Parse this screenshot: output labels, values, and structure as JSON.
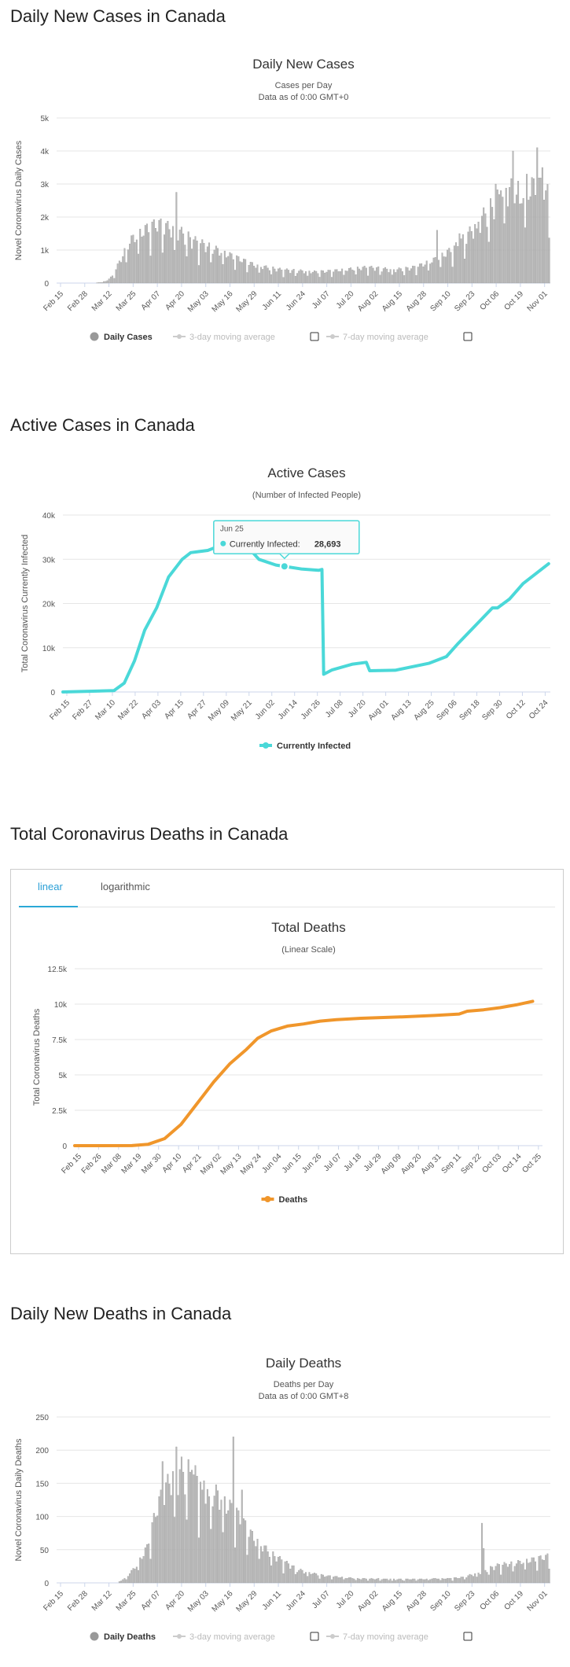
{
  "sections": {
    "daily_cases": "Daily New Cases in Canada",
    "active": "Active Cases in Canada",
    "total_deaths": "Total Coronavirus Deaths in Canada",
    "daily_deaths": "Daily New Deaths in Canada"
  },
  "tabs": {
    "linear": "linear",
    "log": "logarithmic"
  },
  "tooltip": {
    "date": "Jun 25",
    "label": "Currently Infected:",
    "value": "28,693"
  },
  "colors": {
    "bars": "#b8b8b8",
    "active": "#4ad8d8",
    "deaths": "#f0962b",
    "grid": "#e6e6e6",
    "tab": "#2aa8d6"
  },
  "chart_data": [
    {
      "id": "daily_cases",
      "type": "bar",
      "title": "Daily New Cases",
      "subtitle": "Cases per Day",
      "subtitle2": "Data as of 0:00 GMT+0",
      "xlabel": "",
      "ylabel": "Novel Coronavirus Daily Cases",
      "ylim": [
        0,
        5000
      ],
      "y_ticks": [
        0,
        1000,
        2000,
        3000,
        4000,
        5000
      ],
      "y_tick_labels": [
        "0",
        "1k",
        "2k",
        "3k",
        "4k",
        "5k"
      ],
      "x_tick_labels": [
        "Feb 15",
        "Feb 28",
        "Mar 12",
        "Mar 25",
        "Apr 07",
        "Apr 20",
        "May 03",
        "May 16",
        "May 29",
        "Jun 11",
        "Jun 24",
        "Jul 07",
        "Jul 20",
        "Aug 02",
        "Aug 15",
        "Aug 28",
        "Sep 10",
        "Sep 23",
        "Oct 06",
        "Oct 19",
        "Nov 01"
      ],
      "legend": [
        "Daily Cases",
        "3-day moving average",
        "7-day moving average"
      ],
      "keyframes": [
        [
          0,
          0
        ],
        [
          22,
          0
        ],
        [
          28,
          50
        ],
        [
          32,
          200
        ],
        [
          36,
          600
        ],
        [
          42,
          1200
        ],
        [
          50,
          1500
        ],
        [
          58,
          1700
        ],
        [
          70,
          1500
        ],
        [
          80,
          1200
        ],
        [
          90,
          1000
        ],
        [
          100,
          800
        ],
        [
          115,
          500
        ],
        [
          130,
          380
        ],
        [
          150,
          320
        ],
        [
          160,
          350
        ],
        [
          170,
          400
        ],
        [
          180,
          450
        ],
        [
          195,
          380
        ],
        [
          205,
          430
        ],
        [
          210,
          500
        ],
        [
          220,
          700
        ],
        [
          230,
          1000
        ],
        [
          240,
          1500
        ],
        [
          248,
          2000
        ],
        [
          255,
          2400
        ],
        [
          263,
          2700
        ],
        [
          270,
          2600
        ],
        [
          278,
          2800
        ],
        [
          282,
          2700
        ],
        [
          285,
          2500
        ]
      ],
      "spikes": [
        [
          69,
          2750
        ],
        [
          220,
          1600
        ],
        [
          233,
          1500
        ],
        [
          243,
          1650
        ],
        [
          248,
          2100
        ],
        [
          252,
          2300
        ],
        [
          254,
          3000
        ],
        [
          257,
          2800
        ],
        [
          259,
          1800
        ],
        [
          262,
          2900
        ],
        [
          264,
          4000
        ],
        [
          268,
          2400
        ],
        [
          272,
          3300
        ],
        [
          275,
          3200
        ],
        [
          278,
          4100
        ],
        [
          281,
          3500
        ],
        [
          283,
          2800
        ]
      ]
    },
    {
      "id": "active",
      "type": "line",
      "series_name": "Currently Infected",
      "title": "Active Cases",
      "subtitle": "(Number of Infected People)",
      "xlabel": "",
      "ylabel": "Total Coronavirus Currently Infected",
      "ylim": [
        0,
        40000
      ],
      "y_ticks": [
        0,
        10000,
        20000,
        30000,
        40000
      ],
      "y_tick_labels": [
        "0",
        "10k",
        "20k",
        "30k",
        "40k"
      ],
      "x_tick_labels": [
        "Feb 15",
        "Feb 27",
        "Mar 10",
        "Mar 22",
        "Apr 03",
        "Apr 15",
        "Apr 27",
        "May 09",
        "May 21",
        "Jun 02",
        "Jun 14",
        "Jun 26",
        "Jul 08",
        "Jul 20",
        "Aug 01",
        "Aug 13",
        "Aug 25",
        "Sep 06",
        "Sep 18",
        "Sep 30",
        "Oct 12",
        "Oct 24"
      ],
      "points": [
        [
          0,
          0
        ],
        [
          30,
          300
        ],
        [
          36,
          2000
        ],
        [
          42,
          7000
        ],
        [
          48,
          14000
        ],
        [
          55,
          19000
        ],
        [
          62,
          26000
        ],
        [
          70,
          30000
        ],
        [
          75,
          31500
        ],
        [
          85,
          32000
        ],
        [
          95,
          33500
        ],
        [
          108,
          33000
        ],
        [
          115,
          30000
        ],
        [
          125,
          28700
        ],
        [
          140,
          27800
        ],
        [
          150,
          27500
        ],
        [
          152,
          27700
        ],
        [
          153,
          4000
        ],
        [
          158,
          5000
        ],
        [
          170,
          6300
        ],
        [
          178,
          6700
        ],
        [
          180,
          4800
        ],
        [
          195,
          4900
        ],
        [
          215,
          6500
        ],
        [
          225,
          8000
        ],
        [
          232,
          11000
        ],
        [
          242,
          15000
        ],
        [
          252,
          19000
        ],
        [
          255,
          19000
        ],
        [
          262,
          21000
        ],
        [
          270,
          24500
        ],
        [
          285,
          29000
        ]
      ],
      "tooltip_x": 130
    },
    {
      "id": "total_deaths",
      "type": "line",
      "series_name": "Deaths",
      "title": "Total Deaths",
      "subtitle": "(Linear Scale)",
      "xlabel": "",
      "ylabel": "Total Coronavirus Deaths",
      "ylim": [
        0,
        12500
      ],
      "y_ticks": [
        0,
        2500,
        5000,
        7500,
        10000,
        12500
      ],
      "y_tick_labels": [
        "0",
        "2.5k",
        "5k",
        "7.5k",
        "10k",
        "12.5k"
      ],
      "x_tick_labels": [
        "Feb 15",
        "Feb 26",
        "Mar 08",
        "Mar 19",
        "Mar 30",
        "Apr 10",
        "Apr 21",
        "May 02",
        "May 13",
        "May 24",
        "Jun 04",
        "Jun 15",
        "Jun 26",
        "Jul 07",
        "Jul 18",
        "Jul 29",
        "Aug 09",
        "Aug 20",
        "Aug 31",
        "Sep 11",
        "Sep 22",
        "Oct 03",
        "Oct 14",
        "Oct 25"
      ],
      "points": [
        [
          0,
          0
        ],
        [
          35,
          5
        ],
        [
          45,
          100
        ],
        [
          55,
          500
        ],
        [
          65,
          1500
        ],
        [
          75,
          3000
        ],
        [
          85,
          4500
        ],
        [
          95,
          5800
        ],
        [
          105,
          6800
        ],
        [
          112,
          7600
        ],
        [
          120,
          8100
        ],
        [
          130,
          8450
        ],
        [
          140,
          8600
        ],
        [
          150,
          8800
        ],
        [
          160,
          8900
        ],
        [
          175,
          9000
        ],
        [
          200,
          9100
        ],
        [
          220,
          9200
        ],
        [
          235,
          9300
        ],
        [
          240,
          9500
        ],
        [
          250,
          9600
        ],
        [
          260,
          9750
        ],
        [
          270,
          9950
        ],
        [
          280,
          10200
        ]
      ]
    },
    {
      "id": "daily_deaths",
      "type": "bar",
      "title": "Daily Deaths",
      "subtitle": "Deaths per Day",
      "subtitle2": "Data as of 0:00 GMT+8",
      "xlabel": "",
      "ylabel": "Novel Coronavirus Daily Deaths",
      "ylim": [
        0,
        250
      ],
      "y_ticks": [
        0,
        50,
        100,
        150,
        200,
        250
      ],
      "y_tick_labels": [
        "0",
        "50",
        "100",
        "150",
        "200",
        "250"
      ],
      "x_tick_labels": [
        "Feb 15",
        "Feb 28",
        "Mar 12",
        "Mar 25",
        "Apr 07",
        "Apr 20",
        "May 03",
        "May 16",
        "May 29",
        "Jun 11",
        "Jun 24",
        "Jul 07",
        "Jul 20",
        "Aug 02",
        "Aug 15",
        "Aug 28",
        "Sep 10",
        "Sep 23",
        "Oct 06",
        "Oct 19",
        "Nov 01"
      ],
      "legend": [
        "Daily Deaths",
        "3-day moving average",
        "7-day moving average"
      ],
      "keyframes": [
        [
          0,
          0
        ],
        [
          35,
          0
        ],
        [
          40,
          8
        ],
        [
          46,
          25
        ],
        [
          52,
          50
        ],
        [
          58,
          110
        ],
        [
          66,
          150
        ],
        [
          75,
          160
        ],
        [
          85,
          140
        ],
        [
          95,
          120
        ],
        [
          105,
          95
        ],
        [
          115,
          60
        ],
        [
          125,
          40
        ],
        [
          140,
          18
        ],
        [
          155,
          10
        ],
        [
          175,
          6
        ],
        [
          200,
          5
        ],
        [
          225,
          6
        ],
        [
          235,
          8
        ],
        [
          245,
          15
        ],
        [
          255,
          25
        ],
        [
          265,
          28
        ],
        [
          280,
          35
        ],
        [
          285,
          38
        ]
      ],
      "spikes": [
        [
          61,
          183
        ],
        [
          69,
          205
        ],
        [
          72,
          190
        ],
        [
          78,
          170
        ],
        [
          84,
          140
        ],
        [
          88,
          130
        ],
        [
          95,
          125
        ],
        [
          102,
          220
        ],
        [
          107,
          140
        ],
        [
          246,
          90
        ],
        [
          247,
          52
        ]
      ]
    }
  ]
}
